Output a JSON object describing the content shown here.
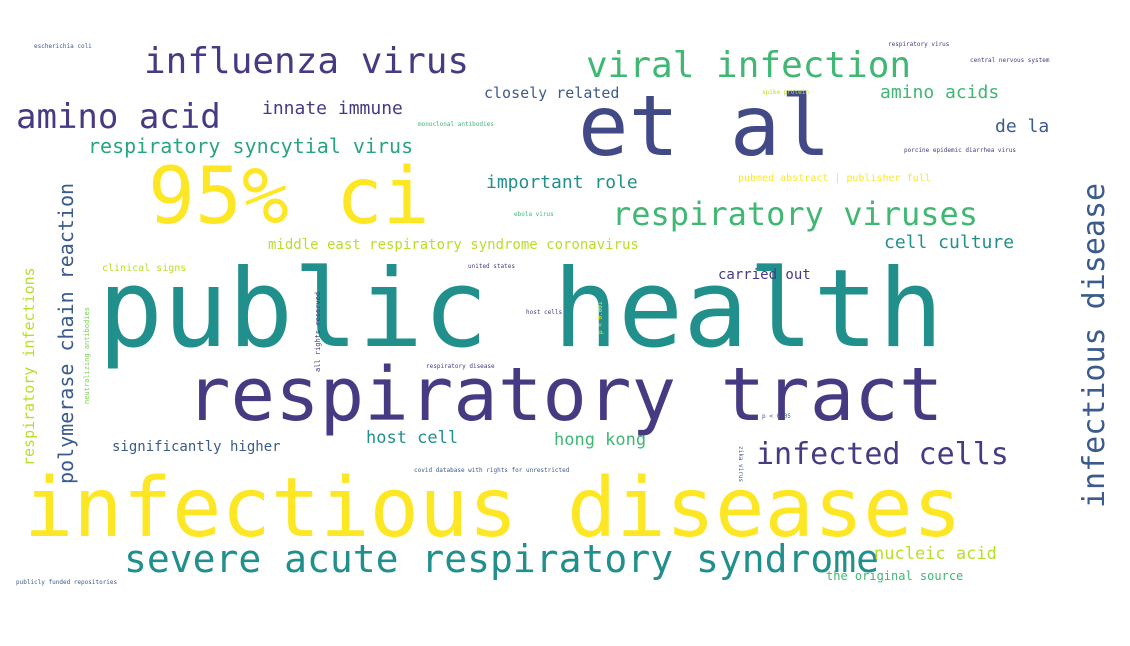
{
  "palette": {
    "background": "#ffffff",
    "purple_dark": "#3d2a78",
    "purple": "#463a82",
    "indigo": "#414a86",
    "blue_slate": "#3b5b8c",
    "teal": "#21908c",
    "teal_light": "#2aa383",
    "green": "#40b773",
    "green_light": "#7ad151",
    "yellow_green": "#b8de29",
    "yellow": "#fde725"
  },
  "words": {
    "public_health": "public health",
    "respiratory_tract": "respiratory tract",
    "infectious_diseases": "infectious diseases",
    "et_al": "et al",
    "ci95": "95% ci",
    "severe_acute_respiratory_syndrome": "severe acute respiratory syndrome",
    "influenza_virus": "influenza virus",
    "viral_infection": "viral infection",
    "amino_acid": "amino acid",
    "respiratory_viruses": "respiratory viruses",
    "infectious_disease": "infectious disease",
    "infected_cells": "infected cells",
    "polymerase_chain_reaction": "polymerase chain reaction",
    "respiratory_syncytial_virus": "respiratory syncytial virus",
    "innate_immune": "innate immune",
    "closely_related": "closely related",
    "amino_acids": "amino acids",
    "de_la": "de la",
    "important_role": "important role",
    "cell_culture": "cell culture",
    "middle_east": "middle east respiratory syndrome coronavirus",
    "carried_out": "carried out",
    "host_cell": "host cell",
    "hong_kong": "hong kong",
    "significantly_higher": "significantly higher",
    "nucleic_acid": "nucleic acid",
    "original_source": "the original source",
    "respiratory_infections": "respiratory infections",
    "clinical_signs": "clinical signs",
    "escherichia_coli": "escherichia coli",
    "respiratory_virus": "respiratory virus",
    "central_nervous_system": "central nervous system",
    "spike_protein": "spike protein",
    "monoclonal_antibodies": "monoclonal antibodies",
    "porcine_epidemic": "porcine epidemic diarrhea virus",
    "pubmed_abstract": "pubmed abstract | publisher full",
    "ebola_virus": "ebola virus",
    "united_states": "united states",
    "host_cells": "host cells",
    "p_001": "p < 0.001",
    "respiratory_disease": "respiratory disease",
    "all_rights_reserved": "all rights reserved",
    "neutralizing_antibodies": "neutralizing antibodies",
    "p_005": "p < 0.05",
    "covid_database": "covid database with rights for unrestricted",
    "zika_virus": "zika virus",
    "publicly_funded": "publicly funded repositories"
  }
}
